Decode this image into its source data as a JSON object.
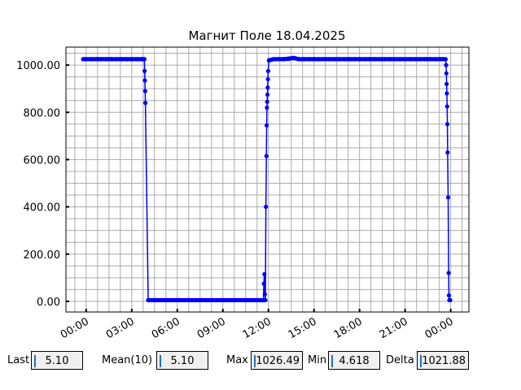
{
  "chart_data": {
    "type": "line",
    "title": "Магнит Поле 18.04.2025",
    "xlabel": "",
    "ylabel": "",
    "xlim": [
      "2025-04-17T22:40",
      "2025-04-19T01:12"
    ],
    "ylim": [
      -45,
      1076
    ],
    "xticks": [
      "00:00",
      "03:00",
      "06:00",
      "09:00",
      "12:00",
      "15:00",
      "18:00",
      "21:00",
      "00:00"
    ],
    "yticks": [
      "0.00",
      "200.00",
      "400.00",
      "600.00",
      "800.00",
      "1000.00"
    ],
    "grid": true,
    "line_color": "#0000ff",
    "series": [
      {
        "points": [
          [
            "2025-04-17T23:48",
            1025
          ],
          [
            "2025-04-18T00:00",
            1025
          ],
          [
            "2025-04-18T00:20",
            1025
          ],
          [
            "2025-04-18T00:40",
            1025
          ],
          [
            "2025-04-18T01:00",
            1025
          ],
          [
            "2025-04-18T01:20",
            1025
          ],
          [
            "2025-04-18T01:40",
            1025
          ],
          [
            "2025-04-18T02:00",
            1025
          ],
          [
            "2025-04-18T02:20",
            1025
          ],
          [
            "2025-04-18T02:40",
            1025
          ],
          [
            "2025-04-18T03:00",
            1025
          ],
          [
            "2025-04-18T03:20",
            1025
          ],
          [
            "2025-04-18T03:40",
            1025
          ],
          [
            "2025-04-18T03:50",
            1025
          ],
          [
            "2025-04-18T03:51",
            975
          ],
          [
            "2025-04-18T03:52",
            935
          ],
          [
            "2025-04-18T03:53",
            890
          ],
          [
            "2025-04-18T03:54",
            840
          ],
          [
            "2025-04-18T04:05",
            5
          ],
          [
            "2025-04-18T04:20",
            5
          ],
          [
            "2025-04-18T04:40",
            5
          ],
          [
            "2025-04-18T05:00",
            5
          ],
          [
            "2025-04-18T05:20",
            5
          ],
          [
            "2025-04-18T05:40",
            5
          ],
          [
            "2025-04-18T06:00",
            5
          ],
          [
            "2025-04-18T06:20",
            5
          ],
          [
            "2025-04-18T06:40",
            5
          ],
          [
            "2025-04-18T07:00",
            5
          ],
          [
            "2025-04-18T07:20",
            5
          ],
          [
            "2025-04-18T07:40",
            5
          ],
          [
            "2025-04-18T08:00",
            5
          ],
          [
            "2025-04-18T08:20",
            5
          ],
          [
            "2025-04-18T08:40",
            5
          ],
          [
            "2025-04-18T09:00",
            5
          ],
          [
            "2025-04-18T09:20",
            5
          ],
          [
            "2025-04-18T09:40",
            5
          ],
          [
            "2025-04-18T10:00",
            5
          ],
          [
            "2025-04-18T10:20",
            5
          ],
          [
            "2025-04-18T10:40",
            5
          ],
          [
            "2025-04-18T11:00",
            5
          ],
          [
            "2025-04-18T11:20",
            5
          ],
          [
            "2025-04-18T11:40",
            5
          ],
          [
            "2025-04-18T11:42",
            75
          ],
          [
            "2025-04-18T11:44",
            115
          ],
          [
            "2025-04-18T11:46",
            30
          ],
          [
            "2025-04-18T11:48",
            5
          ],
          [
            "2025-04-18T11:50",
            400
          ],
          [
            "2025-04-18T11:52",
            615
          ],
          [
            "2025-04-18T11:53",
            745
          ],
          [
            "2025-04-18T11:54",
            820
          ],
          [
            "2025-04-18T11:55",
            845
          ],
          [
            "2025-04-18T11:56",
            875
          ],
          [
            "2025-04-18T11:57",
            905
          ],
          [
            "2025-04-18T11:58",
            940
          ],
          [
            "2025-04-18T11:59",
            975
          ],
          [
            "2025-04-18T12:02",
            1020
          ],
          [
            "2025-04-18T12:20",
            1025
          ],
          [
            "2025-04-18T12:40",
            1025
          ],
          [
            "2025-04-18T13:00",
            1025
          ],
          [
            "2025-04-18T13:20",
            1027
          ],
          [
            "2025-04-18T13:40",
            1030
          ],
          [
            "2025-04-18T14:00",
            1025
          ],
          [
            "2025-04-18T14:20",
            1025
          ],
          [
            "2025-04-18T14:40",
            1025
          ],
          [
            "2025-04-18T15:00",
            1025
          ],
          [
            "2025-04-18T15:20",
            1025
          ],
          [
            "2025-04-18T15:40",
            1025
          ],
          [
            "2025-04-18T16:00",
            1025
          ],
          [
            "2025-04-18T16:20",
            1025
          ],
          [
            "2025-04-18T16:40",
            1025
          ],
          [
            "2025-04-18T17:00",
            1025
          ],
          [
            "2025-04-18T17:20",
            1025
          ],
          [
            "2025-04-18T17:40",
            1025
          ],
          [
            "2025-04-18T18:00",
            1025
          ],
          [
            "2025-04-18T18:20",
            1025
          ],
          [
            "2025-04-18T18:40",
            1025
          ],
          [
            "2025-04-18T19:00",
            1025
          ],
          [
            "2025-04-18T19:20",
            1025
          ],
          [
            "2025-04-18T19:40",
            1025
          ],
          [
            "2025-04-18T20:00",
            1025
          ],
          [
            "2025-04-18T20:20",
            1025
          ],
          [
            "2025-04-18T20:40",
            1025
          ],
          [
            "2025-04-18T21:00",
            1025
          ],
          [
            "2025-04-18T21:20",
            1025
          ],
          [
            "2025-04-18T21:40",
            1025
          ],
          [
            "2025-04-18T22:00",
            1025
          ],
          [
            "2025-04-18T22:20",
            1025
          ],
          [
            "2025-04-18T22:40",
            1025
          ],
          [
            "2025-04-18T23:00",
            1025
          ],
          [
            "2025-04-18T23:20",
            1025
          ],
          [
            "2025-04-18T23:40",
            1025
          ],
          [
            "2025-04-18T23:42",
            1000
          ],
          [
            "2025-04-18T23:43",
            965
          ],
          [
            "2025-04-18T23:44",
            920
          ],
          [
            "2025-04-18T23:45",
            880
          ],
          [
            "2025-04-18T23:46",
            825
          ],
          [
            "2025-04-18T23:47",
            750
          ],
          [
            "2025-04-18T23:48",
            630
          ],
          [
            "2025-04-18T23:50",
            440
          ],
          [
            "2025-04-18T23:52",
            120
          ],
          [
            "2025-04-18T23:53",
            25
          ],
          [
            "2025-04-18T23:55",
            5
          ],
          [
            "2025-04-18T23:58",
            5
          ]
        ]
      }
    ]
  },
  "stats": {
    "last_label": "Last",
    "last_value": "5.10",
    "mean_label": "Mean(10)",
    "mean_value": "5.10",
    "max_label": "Max",
    "max_value": "1026.49",
    "min_label": "Min",
    "min_value": "4.618",
    "delta_label": "Delta",
    "delta_value": "1021.88"
  }
}
